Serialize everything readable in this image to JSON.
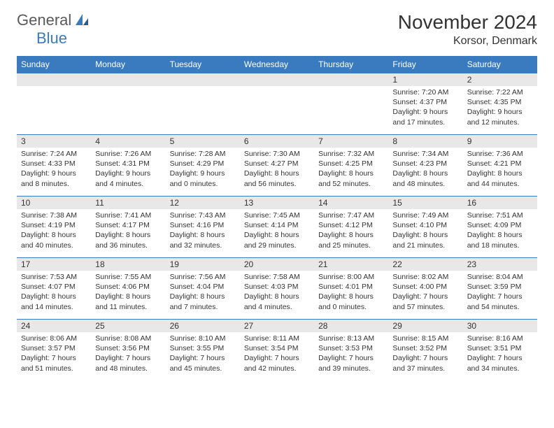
{
  "brand": {
    "word1": "General",
    "word2": "Blue"
  },
  "title": "November 2024",
  "location": "Korsor, Denmark",
  "colors": {
    "accent": "#3a7bbf",
    "header_bg": "#3a7bbf",
    "header_fg": "#ffffff",
    "daynum_bg": "#e8e8e8",
    "border": "#3a7bbf",
    "text": "#333333",
    "logo_gray": "#5a5a5a"
  },
  "weekdays": [
    "Sunday",
    "Monday",
    "Tuesday",
    "Wednesday",
    "Thursday",
    "Friday",
    "Saturday"
  ],
  "layout": {
    "first_weekday_index": 5,
    "days_in_month": 30
  },
  "days": [
    {
      "n": 1,
      "sunrise": "7:20 AM",
      "sunset": "4:37 PM",
      "daylight": "9 hours and 17 minutes."
    },
    {
      "n": 2,
      "sunrise": "7:22 AM",
      "sunset": "4:35 PM",
      "daylight": "9 hours and 12 minutes."
    },
    {
      "n": 3,
      "sunrise": "7:24 AM",
      "sunset": "4:33 PM",
      "daylight": "9 hours and 8 minutes."
    },
    {
      "n": 4,
      "sunrise": "7:26 AM",
      "sunset": "4:31 PM",
      "daylight": "9 hours and 4 minutes."
    },
    {
      "n": 5,
      "sunrise": "7:28 AM",
      "sunset": "4:29 PM",
      "daylight": "9 hours and 0 minutes."
    },
    {
      "n": 6,
      "sunrise": "7:30 AM",
      "sunset": "4:27 PM",
      "daylight": "8 hours and 56 minutes."
    },
    {
      "n": 7,
      "sunrise": "7:32 AM",
      "sunset": "4:25 PM",
      "daylight": "8 hours and 52 minutes."
    },
    {
      "n": 8,
      "sunrise": "7:34 AM",
      "sunset": "4:23 PM",
      "daylight": "8 hours and 48 minutes."
    },
    {
      "n": 9,
      "sunrise": "7:36 AM",
      "sunset": "4:21 PM",
      "daylight": "8 hours and 44 minutes."
    },
    {
      "n": 10,
      "sunrise": "7:38 AM",
      "sunset": "4:19 PM",
      "daylight": "8 hours and 40 minutes."
    },
    {
      "n": 11,
      "sunrise": "7:41 AM",
      "sunset": "4:17 PM",
      "daylight": "8 hours and 36 minutes."
    },
    {
      "n": 12,
      "sunrise": "7:43 AM",
      "sunset": "4:16 PM",
      "daylight": "8 hours and 32 minutes."
    },
    {
      "n": 13,
      "sunrise": "7:45 AM",
      "sunset": "4:14 PM",
      "daylight": "8 hours and 29 minutes."
    },
    {
      "n": 14,
      "sunrise": "7:47 AM",
      "sunset": "4:12 PM",
      "daylight": "8 hours and 25 minutes."
    },
    {
      "n": 15,
      "sunrise": "7:49 AM",
      "sunset": "4:10 PM",
      "daylight": "8 hours and 21 minutes."
    },
    {
      "n": 16,
      "sunrise": "7:51 AM",
      "sunset": "4:09 PM",
      "daylight": "8 hours and 18 minutes."
    },
    {
      "n": 17,
      "sunrise": "7:53 AM",
      "sunset": "4:07 PM",
      "daylight": "8 hours and 14 minutes."
    },
    {
      "n": 18,
      "sunrise": "7:55 AM",
      "sunset": "4:06 PM",
      "daylight": "8 hours and 11 minutes."
    },
    {
      "n": 19,
      "sunrise": "7:56 AM",
      "sunset": "4:04 PM",
      "daylight": "8 hours and 7 minutes."
    },
    {
      "n": 20,
      "sunrise": "7:58 AM",
      "sunset": "4:03 PM",
      "daylight": "8 hours and 4 minutes."
    },
    {
      "n": 21,
      "sunrise": "8:00 AM",
      "sunset": "4:01 PM",
      "daylight": "8 hours and 0 minutes."
    },
    {
      "n": 22,
      "sunrise": "8:02 AM",
      "sunset": "4:00 PM",
      "daylight": "7 hours and 57 minutes."
    },
    {
      "n": 23,
      "sunrise": "8:04 AM",
      "sunset": "3:59 PM",
      "daylight": "7 hours and 54 minutes."
    },
    {
      "n": 24,
      "sunrise": "8:06 AM",
      "sunset": "3:57 PM",
      "daylight": "7 hours and 51 minutes."
    },
    {
      "n": 25,
      "sunrise": "8:08 AM",
      "sunset": "3:56 PM",
      "daylight": "7 hours and 48 minutes."
    },
    {
      "n": 26,
      "sunrise": "8:10 AM",
      "sunset": "3:55 PM",
      "daylight": "7 hours and 45 minutes."
    },
    {
      "n": 27,
      "sunrise": "8:11 AM",
      "sunset": "3:54 PM",
      "daylight": "7 hours and 42 minutes."
    },
    {
      "n": 28,
      "sunrise": "8:13 AM",
      "sunset": "3:53 PM",
      "daylight": "7 hours and 39 minutes."
    },
    {
      "n": 29,
      "sunrise": "8:15 AM",
      "sunset": "3:52 PM",
      "daylight": "7 hours and 37 minutes."
    },
    {
      "n": 30,
      "sunrise": "8:16 AM",
      "sunset": "3:51 PM",
      "daylight": "7 hours and 34 minutes."
    }
  ],
  "labels": {
    "sunrise": "Sunrise:",
    "sunset": "Sunset:",
    "daylight": "Daylight:"
  }
}
